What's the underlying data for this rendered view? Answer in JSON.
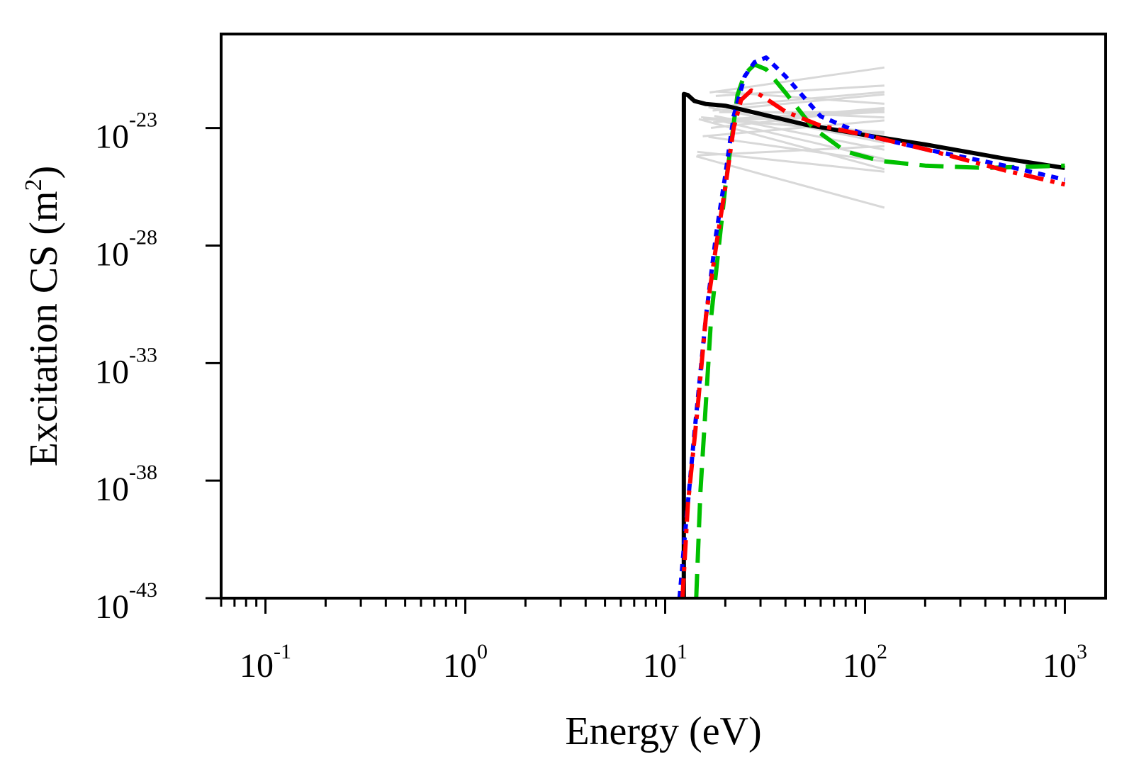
{
  "chart_data": {
    "type": "line",
    "title": "",
    "xlabel": "Energy (eV)",
    "ylabel_main": "Excitation CS (m",
    "ylabel_exp": "2",
    "ylabel_close": ")",
    "xscale": "log",
    "yscale": "log",
    "xlim": [
      0.06,
      1600
    ],
    "ylim": [
      1e-43,
      1e-19
    ],
    "grid": false,
    "x_ticks": [
      {
        "base": "10",
        "exp": "-1",
        "value": 0.1
      },
      {
        "base": "10",
        "exp": "0",
        "value": 1
      },
      {
        "base": "10",
        "exp": "1",
        "value": 10
      },
      {
        "base": "10",
        "exp": "2",
        "value": 100
      },
      {
        "base": "10",
        "exp": "3",
        "value": 1000
      }
    ],
    "y_ticks": [
      {
        "base": "10",
        "exp": "-43",
        "value": -43
      },
      {
        "base": "10",
        "exp": "-38",
        "value": -38
      },
      {
        "base": "10",
        "exp": "-33",
        "value": -33
      },
      {
        "base": "10",
        "exp": "-28",
        "value": -28
      },
      {
        "base": "10",
        "exp": "-23",
        "value": -23
      }
    ],
    "background_color": "#d8d8d8",
    "series": [
      {
        "name": "black-solid",
        "color": "#000000",
        "dash": "solid",
        "x": [
          12.4,
          12.41,
          13,
          14,
          16,
          20,
          30,
          50,
          100,
          200,
          500,
          1000
        ],
        "y": [
          -43,
          -21.55,
          -21.6,
          -21.85,
          -21.98,
          -22.05,
          -22.4,
          -22.85,
          -23.3,
          -23.7,
          -24.3,
          -24.7
        ]
      },
      {
        "name": "green-dashed",
        "color": "#00c000",
        "dash": "dashed",
        "x": [
          14.3,
          15,
          17,
          20,
          23,
          25,
          28,
          32,
          40,
          55,
          80,
          120,
          200,
          400,
          1000
        ],
        "y": [
          -43,
          -38.5,
          -31,
          -25.5,
          -21.6,
          -20.7,
          -20.3,
          -20.5,
          -21.5,
          -23.0,
          -24.0,
          -24.4,
          -24.6,
          -24.7,
          -24.6
        ]
      },
      {
        "name": "blue-dotted",
        "color": "#0000ff",
        "dash": "dotted",
        "x": [
          11.8,
          12.5,
          14,
          16,
          18,
          20,
          22,
          25,
          28,
          32,
          40,
          60,
          100,
          200,
          500,
          1000
        ],
        "y": [
          -43,
          -40.5,
          -36,
          -31,
          -27.5,
          -25,
          -22.5,
          -20.8,
          -20.2,
          -20.0,
          -20.8,
          -22.5,
          -23.3,
          -23.9,
          -24.6,
          -25.2
        ]
      },
      {
        "name": "red-dashdot",
        "color": "#ff0000",
        "dash": "dashdot",
        "x": [
          12.2,
          13,
          14.5,
          16,
          18,
          20,
          22,
          24,
          27,
          30,
          40,
          60,
          100,
          200,
          500,
          1000
        ],
        "y": [
          -43,
          -39,
          -35,
          -31,
          -28,
          -25.5,
          -23,
          -21.8,
          -21.4,
          -21.6,
          -22.3,
          -22.9,
          -23.3,
          -23.9,
          -24.8,
          -25.4
        ]
      }
    ]
  }
}
